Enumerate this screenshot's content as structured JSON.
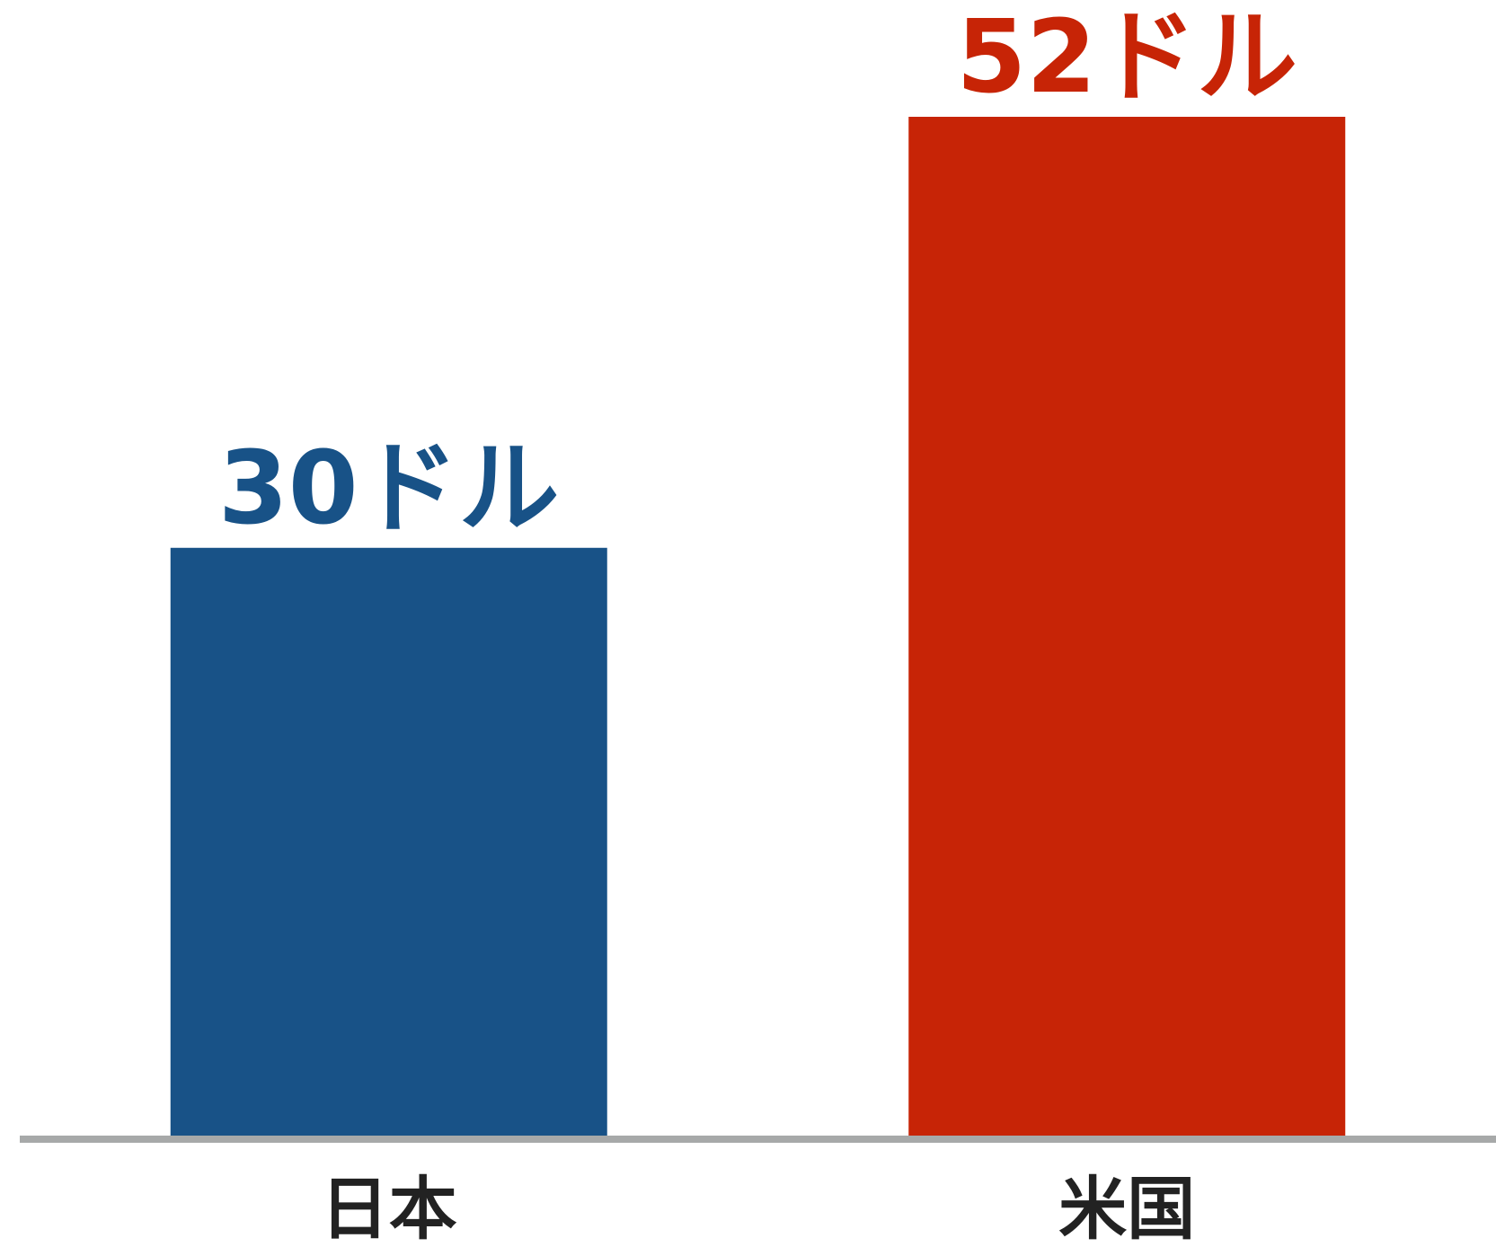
{
  "chart_data": {
    "type": "bar",
    "categories": [
      "日本",
      "米国"
    ],
    "values": [
      30,
      52
    ],
    "value_labels": [
      "30ドル",
      "52ドル"
    ],
    "colors": [
      "#185287",
      "#c72406"
    ],
    "axis_color": "#a7a9a9",
    "title": "",
    "xlabel": "",
    "ylabel": "",
    "ylim": [
      0,
      52
    ],
    "grid": false,
    "legend": "none"
  }
}
